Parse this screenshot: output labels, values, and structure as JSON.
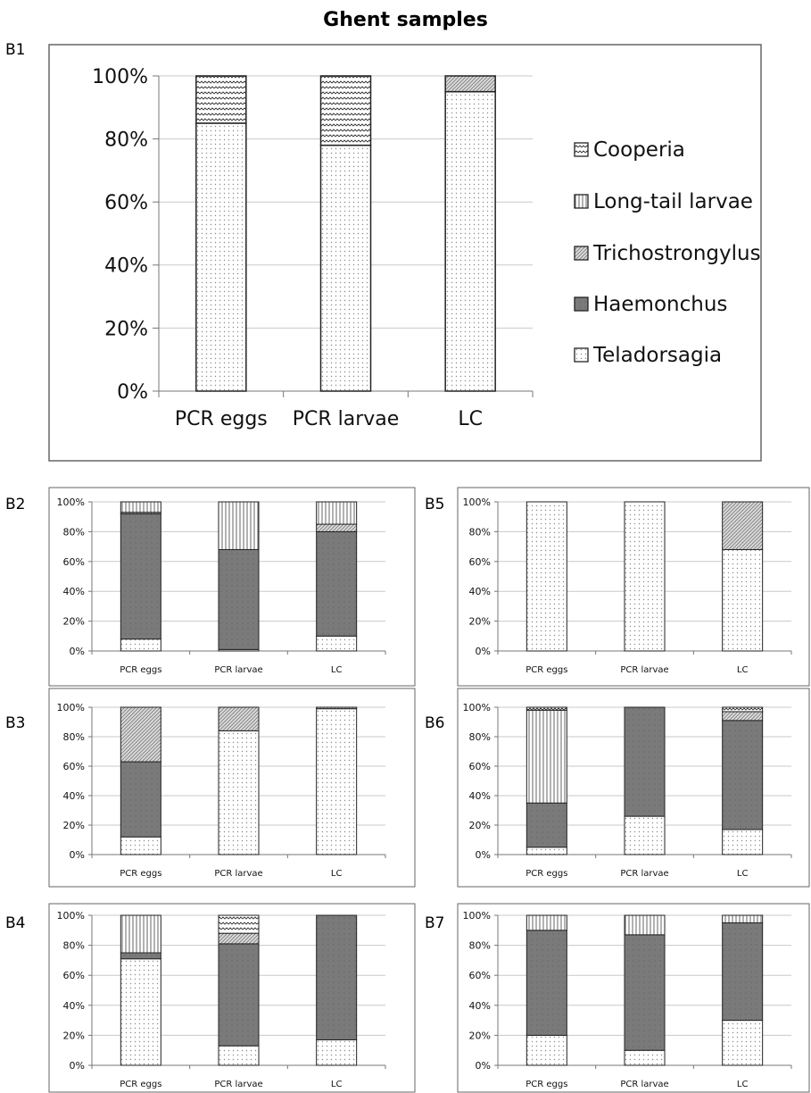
{
  "figure": {
    "title": "Ghent samples"
  },
  "legend_entries": [
    {
      "label": "Cooperia",
      "pattern": "wave"
    },
    {
      "label": "Long-tail larvae",
      "pattern": "vlines"
    },
    {
      "label": "Trichostrongylus",
      "pattern": "diag"
    },
    {
      "label": "Haemonchus",
      "pattern": "dark"
    },
    {
      "label": "Teladorsagia",
      "pattern": "dots"
    }
  ],
  "colors": {
    "haemonchus_fill": "#7a7a7a",
    "dots": "#9a9a9a",
    "grid": "#c8c8c8",
    "border": "#666666"
  },
  "chart_data": [
    {
      "panel": "B1",
      "type": "bar",
      "stacked": true,
      "percent": true,
      "categories": [
        "PCR eggs",
        "PCR larvae",
        "LC"
      ],
      "y_ticks": [
        "0%",
        "20%",
        "40%",
        "60%",
        "80%",
        "100%"
      ],
      "ylim": [
        0,
        100
      ],
      "grid": true,
      "legend": "right",
      "series": [
        {
          "name": "Teladorsagia",
          "values": [
            85,
            78,
            95
          ]
        },
        {
          "name": "Haemonchus",
          "values": [
            0,
            0,
            0
          ]
        },
        {
          "name": "Trichostrongylus",
          "values": [
            0,
            0,
            5
          ]
        },
        {
          "name": "Long-tail larvae",
          "values": [
            0,
            0,
            0
          ]
        },
        {
          "name": "Cooperia",
          "values": [
            15,
            22,
            0
          ]
        }
      ]
    },
    {
      "panel": "B2",
      "type": "bar",
      "stacked": true,
      "percent": true,
      "categories": [
        "PCR eggs",
        "PCR larvae",
        "LC"
      ],
      "y_ticks": [
        "0%",
        "20%",
        "40%",
        "60%",
        "80%",
        "100%"
      ],
      "ylim": [
        0,
        100
      ],
      "grid": true,
      "series": [
        {
          "name": "Teladorsagia",
          "values": [
            8,
            1,
            10
          ]
        },
        {
          "name": "Haemonchus",
          "values": [
            84,
            67,
            70
          ]
        },
        {
          "name": "Trichostrongylus",
          "values": [
            1,
            0,
            5
          ]
        },
        {
          "name": "Long-tail larvae",
          "values": [
            7,
            32,
            15
          ]
        },
        {
          "name": "Cooperia",
          "values": [
            0,
            0,
            0
          ]
        }
      ]
    },
    {
      "panel": "B3",
      "type": "bar",
      "stacked": true,
      "percent": true,
      "categories": [
        "PCR eggs",
        "PCR larvae",
        "LC"
      ],
      "y_ticks": [
        "0%",
        "20%",
        "40%",
        "60%",
        "80%",
        "100%"
      ],
      "ylim": [
        0,
        100
      ],
      "grid": true,
      "series": [
        {
          "name": "Teladorsagia",
          "values": [
            12,
            84,
            99
          ]
        },
        {
          "name": "Haemonchus",
          "values": [
            51,
            0,
            0
          ]
        },
        {
          "name": "Trichostrongylus",
          "values": [
            37,
            16,
            1
          ]
        },
        {
          "name": "Long-tail larvae",
          "values": [
            0,
            0,
            0
          ]
        },
        {
          "name": "Cooperia",
          "values": [
            0,
            0,
            0
          ]
        }
      ]
    },
    {
      "panel": "B4",
      "type": "bar",
      "stacked": true,
      "percent": true,
      "categories": [
        "PCR eggs",
        "PCR larvae",
        "LC"
      ],
      "y_ticks": [
        "0%",
        "20%",
        "40%",
        "60%",
        "80%",
        "100%"
      ],
      "ylim": [
        0,
        100
      ],
      "grid": true,
      "series": [
        {
          "name": "Teladorsagia",
          "values": [
            71,
            13,
            17
          ]
        },
        {
          "name": "Haemonchus",
          "values": [
            4,
            68,
            83
          ]
        },
        {
          "name": "Trichostrongylus",
          "values": [
            0,
            7,
            0
          ]
        },
        {
          "name": "Long-tail larvae",
          "values": [
            25,
            0,
            0
          ]
        },
        {
          "name": "Cooperia",
          "values": [
            0,
            12,
            0
          ]
        }
      ]
    },
    {
      "panel": "B5",
      "type": "bar",
      "stacked": true,
      "percent": true,
      "categories": [
        "PCR eggs",
        "PCR larvae",
        "LC"
      ],
      "y_ticks": [
        "0%",
        "20%",
        "40%",
        "60%",
        "80%",
        "100%"
      ],
      "ylim": [
        0,
        100
      ],
      "grid": true,
      "series": [
        {
          "name": "Teladorsagia",
          "values": [
            100,
            100,
            68
          ]
        },
        {
          "name": "Haemonchus",
          "values": [
            0,
            0,
            0
          ]
        },
        {
          "name": "Trichostrongylus",
          "values": [
            0,
            0,
            32
          ]
        },
        {
          "name": "Long-tail larvae",
          "values": [
            0,
            0,
            0
          ]
        },
        {
          "name": "Cooperia",
          "values": [
            0,
            0,
            0
          ]
        }
      ]
    },
    {
      "panel": "B6",
      "type": "bar",
      "stacked": true,
      "percent": true,
      "categories": [
        "PCR eggs",
        "PCR larvae",
        "LC"
      ],
      "y_ticks": [
        "0%",
        "20%",
        "40%",
        "60%",
        "80%",
        "100%"
      ],
      "ylim": [
        0,
        100
      ],
      "grid": true,
      "series": [
        {
          "name": "Teladorsagia",
          "values": [
            5,
            26,
            17
          ]
        },
        {
          "name": "Haemonchus",
          "values": [
            30,
            74,
            74
          ]
        },
        {
          "name": "Trichostrongylus",
          "values": [
            0,
            0,
            6
          ]
        },
        {
          "name": "Long-tail larvae",
          "values": [
            63,
            0,
            0
          ]
        },
        {
          "name": "Cooperia",
          "values": [
            2,
            0,
            3
          ]
        }
      ]
    },
    {
      "panel": "B7",
      "type": "bar",
      "stacked": true,
      "percent": true,
      "categories": [
        "PCR eggs",
        "PCR larvae",
        "LC"
      ],
      "y_ticks": [
        "0%",
        "20%",
        "40%",
        "60%",
        "80%",
        "100%"
      ],
      "ylim": [
        0,
        100
      ],
      "grid": true,
      "series": [
        {
          "name": "Teladorsagia",
          "values": [
            20,
            10,
            30
          ]
        },
        {
          "name": "Haemonchus",
          "values": [
            70,
            77,
            65
          ]
        },
        {
          "name": "Trichostrongylus",
          "values": [
            0,
            0,
            0
          ]
        },
        {
          "name": "Long-tail larvae",
          "values": [
            10,
            13,
            5
          ]
        },
        {
          "name": "Cooperia",
          "values": [
            0,
            0,
            0
          ]
        }
      ]
    }
  ]
}
